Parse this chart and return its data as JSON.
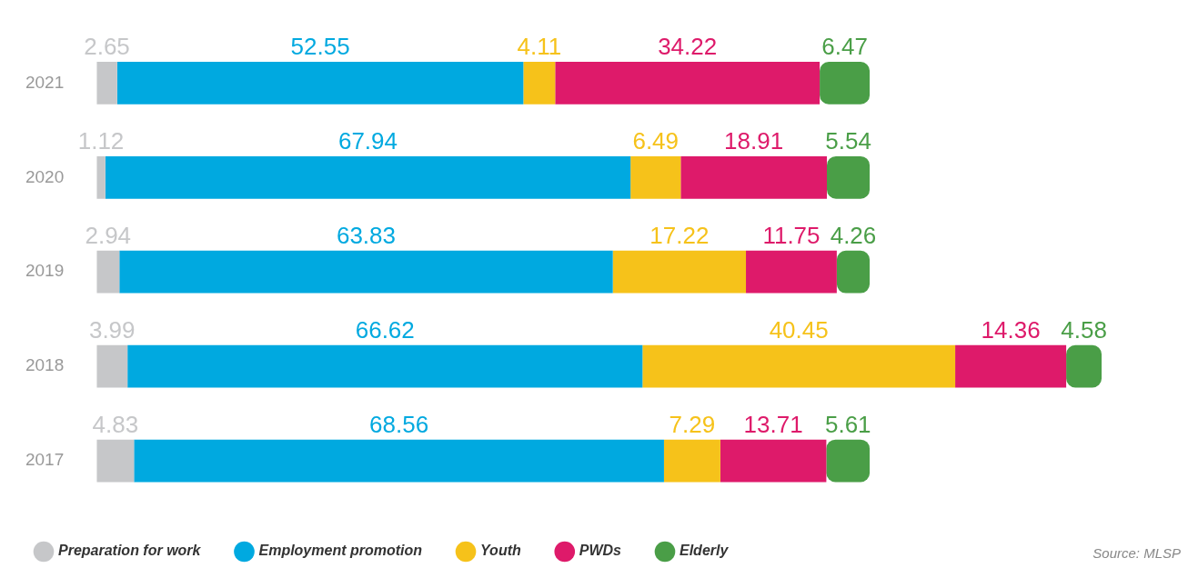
{
  "chart_data": {
    "type": "bar",
    "orientation": "horizontal",
    "stacked": true,
    "data_labels": true,
    "grid": false,
    "legend": "bottom left",
    "tick_labels": "y",
    "categories": [
      "2021",
      "2020",
      "2019",
      "2018",
      "2017"
    ],
    "series": [
      {
        "name": "Preparation for work",
        "color": "#c6c7c9",
        "values": [
          2.65,
          1.12,
          2.94,
          3.99,
          4.83
        ]
      },
      {
        "name": "Employment promotion",
        "color": "#00a9e0",
        "values": [
          52.55,
          67.94,
          63.83,
          66.62,
          68.56
        ]
      },
      {
        "name": "Youth",
        "color": "#f6c21a",
        "values": [
          4.11,
          6.49,
          17.22,
          40.45,
          7.29
        ]
      },
      {
        "name": "PWDs",
        "color": "#de1a6a",
        "values": [
          34.22,
          18.91,
          11.75,
          14.36,
          13.71
        ]
      },
      {
        "name": "Elderly",
        "color": "#4a9e47",
        "values": [
          6.47,
          5.54,
          4.26,
          4.58,
          5.61
        ]
      }
    ],
    "annotations": [
      "Source: MLSP"
    ]
  }
}
